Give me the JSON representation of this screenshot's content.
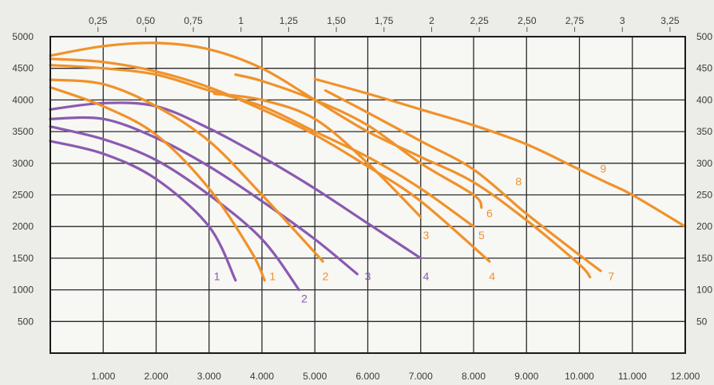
{
  "chart_data": {
    "type": "line",
    "grid": true,
    "legend": "none",
    "x_bottom": {
      "range": [
        0,
        12000
      ],
      "ticks": [
        "1.000",
        "2.000",
        "3.000",
        "4.000",
        "5.000",
        "6.000",
        "7.000",
        "8.000",
        "9.000",
        "10.000",
        "11.000",
        "12.000"
      ]
    },
    "x_top": {
      "range": [
        0,
        3.33
      ],
      "ticks": [
        "0,25",
        "0,50",
        "0,75",
        "1",
        "1,25",
        "1,50",
        "1,75",
        "2",
        "2,25",
        "2,50",
        "2,75",
        "3",
        "3,25"
      ]
    },
    "y_left": {
      "range": [
        0,
        5000
      ],
      "ticks": [
        "500",
        "1000",
        "1500",
        "2000",
        "2500",
        "3000",
        "3500",
        "4000",
        "4500",
        "5000"
      ]
    },
    "y_right": {
      "ticks": [
        "50",
        "100",
        "150",
        "200",
        "250",
        "300",
        "350",
        "400",
        "450",
        "500"
      ]
    },
    "colors": {
      "purple": "#8a5ab0",
      "orange": "#f0922a"
    },
    "series": [
      {
        "label": "1",
        "color": "purple",
        "points": [
          [
            0,
            3350
          ],
          [
            1000,
            3150
          ],
          [
            2000,
            2750
          ],
          [
            3000,
            2000
          ],
          [
            3500,
            1150
          ]
        ]
      },
      {
        "label": "2",
        "color": "purple",
        "points": [
          [
            0,
            3580
          ],
          [
            1000,
            3380
          ],
          [
            2000,
            3050
          ],
          [
            3000,
            2500
          ],
          [
            4000,
            1800
          ],
          [
            4700,
            1000
          ]
        ]
      },
      {
        "label": "3",
        "color": "purple",
        "points": [
          [
            0,
            3700
          ],
          [
            1000,
            3700
          ],
          [
            2000,
            3400
          ],
          [
            3000,
            2950
          ],
          [
            4000,
            2400
          ],
          [
            5000,
            1800
          ],
          [
            5800,
            1250
          ]
        ]
      },
      {
        "label": "4",
        "color": "purple",
        "points": [
          [
            0,
            3850
          ],
          [
            1000,
            3950
          ],
          [
            2000,
            3900
          ],
          [
            3000,
            3550
          ],
          [
            4000,
            3100
          ],
          [
            5000,
            2600
          ],
          [
            6000,
            2050
          ],
          [
            7000,
            1500
          ]
        ]
      },
      {
        "label": "1",
        "color": "orange",
        "points": [
          [
            0,
            4200
          ],
          [
            1000,
            3900
          ],
          [
            2000,
            3450
          ],
          [
            3000,
            2600
          ],
          [
            3800,
            1600
          ],
          [
            4050,
            1150
          ]
        ]
      },
      {
        "label": "2",
        "color": "orange",
        "points": [
          [
            0,
            4320
          ],
          [
            1000,
            4250
          ],
          [
            2000,
            3900
          ],
          [
            3000,
            3350
          ],
          [
            4000,
            2500
          ],
          [
            5150,
            1450
          ]
        ]
      },
      {
        "label": "3",
        "color": "orange",
        "points": [
          [
            3100,
            4100
          ],
          [
            4000,
            4000
          ],
          [
            5000,
            3700
          ],
          [
            6000,
            3000
          ],
          [
            7000,
            2150
          ]
        ]
      },
      {
        "label": "4",
        "color": "orange",
        "points": [
          [
            0,
            4650
          ],
          [
            1000,
            4600
          ],
          [
            2000,
            4450
          ],
          [
            3000,
            4200
          ],
          [
            4000,
            3850
          ],
          [
            5000,
            3450
          ],
          [
            6000,
            2950
          ],
          [
            7000,
            2400
          ],
          [
            8300,
            1450
          ]
        ]
      },
      {
        "label": "5",
        "color": "orange",
        "points": [
          [
            0,
            4550
          ],
          [
            1000,
            4500
          ],
          [
            2000,
            4400
          ],
          [
            3000,
            4150
          ],
          [
            4000,
            3900
          ],
          [
            5000,
            3500
          ],
          [
            6000,
            3100
          ],
          [
            7000,
            2600
          ],
          [
            8000,
            2000
          ]
        ]
      },
      {
        "label": "6",
        "color": "orange",
        "points": [
          [
            3500,
            4400
          ],
          [
            4000,
            4300
          ],
          [
            5000,
            4000
          ],
          [
            6000,
            3600
          ],
          [
            7000,
            3000
          ],
          [
            8000,
            2500
          ],
          [
            8150,
            2300
          ]
        ]
      },
      {
        "label": "7",
        "color": "orange",
        "points": [
          [
            0,
            4700
          ],
          [
            1000,
            4850
          ],
          [
            2000,
            4900
          ],
          [
            3000,
            4800
          ],
          [
            4000,
            4500
          ],
          [
            5000,
            4000
          ],
          [
            6000,
            3500
          ],
          [
            7000,
            3100
          ],
          [
            8000,
            2700
          ],
          [
            9000,
            2100
          ],
          [
            10000,
            1400
          ],
          [
            10200,
            1200
          ]
        ]
      },
      {
        "label": "8",
        "color": "orange",
        "points": [
          [
            5200,
            4150
          ],
          [
            6000,
            3800
          ],
          [
            7000,
            3350
          ],
          [
            8000,
            2900
          ],
          [
            9000,
            2200
          ],
          [
            10000,
            1550
          ],
          [
            10400,
            1300
          ]
        ]
      },
      {
        "label": "9",
        "color": "orange",
        "points": [
          [
            5000,
            4330
          ],
          [
            6000,
            4100
          ],
          [
            7000,
            3850
          ],
          [
            8000,
            3600
          ],
          [
            9000,
            3300
          ],
          [
            10000,
            2900
          ],
          [
            10500,
            2700
          ],
          [
            11000,
            2500
          ],
          [
            12000,
            2000
          ]
        ]
      }
    ],
    "curve_labels": [
      {
        "text": "1",
        "color": "purple",
        "at": [
          3150,
          1150
        ]
      },
      {
        "text": "2",
        "color": "purple",
        "at": [
          4800,
          800
        ]
      },
      {
        "text": "3",
        "color": "purple",
        "at": [
          6000,
          1150
        ]
      },
      {
        "text": "4",
        "color": "purple",
        "at": [
          7100,
          1150
        ]
      },
      {
        "text": "1",
        "color": "orange",
        "at": [
          4200,
          1150
        ]
      },
      {
        "text": "2",
        "color": "orange",
        "at": [
          5200,
          1150
        ]
      },
      {
        "text": "3",
        "color": "orange",
        "at": [
          7100,
          1800
        ]
      },
      {
        "text": "4",
        "color": "orange",
        "at": [
          8350,
          1150
        ]
      },
      {
        "text": "5",
        "color": "orange",
        "at": [
          8150,
          1800
        ]
      },
      {
        "text": "6",
        "color": "orange",
        "at": [
          8300,
          2150
        ]
      },
      {
        "text": "7",
        "color": "orange",
        "at": [
          10600,
          1150
        ]
      },
      {
        "text": "8",
        "color": "orange",
        "at": [
          8850,
          2650
        ]
      },
      {
        "text": "9",
        "color": "orange",
        "at": [
          10450,
          2850
        ]
      }
    ]
  }
}
